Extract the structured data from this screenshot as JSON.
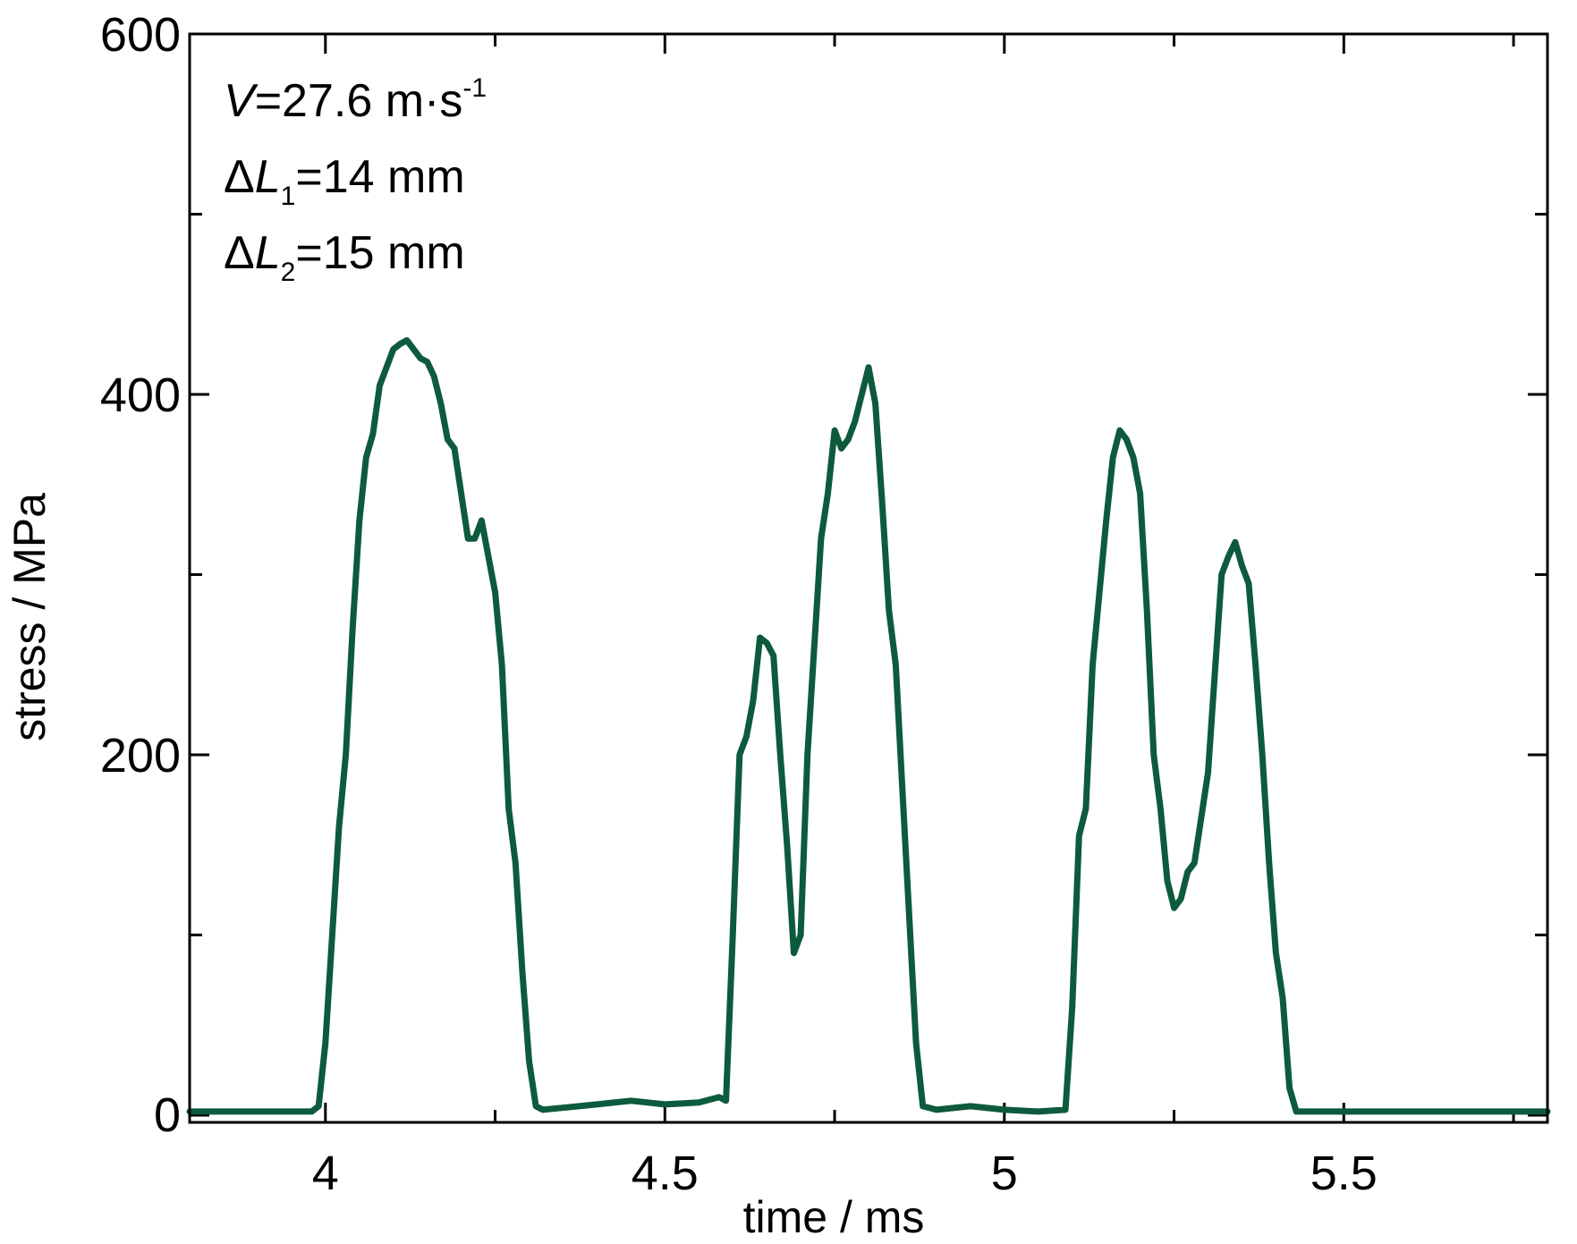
{
  "chart_data": {
    "type": "line",
    "x_label": "time / ms",
    "y_label": "stress / MPa",
    "annotations": [
      [
        "V",
        "=27.6 m·s",
        "-1"
      ],
      [
        "Δ",
        "L",
        "1",
        "=14 mm"
      ],
      [
        "Δ",
        "L",
        "2",
        "=15 mm"
      ]
    ],
    "xlim": [
      3.8,
      5.8
    ],
    "ylim": [
      -4,
      600
    ],
    "xticks": [
      4.0,
      4.5,
      5.0,
      5.5
    ],
    "xminorticks": [
      4.25,
      4.75,
      5.25,
      5.75
    ],
    "yticks": [
      0,
      200,
      400,
      600
    ],
    "yminorticks": [
      100,
      300,
      500
    ],
    "series": [
      {
        "color": "#0d5a3c",
        "x": [
          3.8,
          3.98,
          3.99,
          4.0,
          4.01,
          4.02,
          4.03,
          4.04,
          4.05,
          4.06,
          4.07,
          4.08,
          4.09,
          4.1,
          4.11,
          4.12,
          4.13,
          4.14,
          4.15,
          4.16,
          4.17,
          4.18,
          4.19,
          4.2,
          4.21,
          4.22,
          4.23,
          4.24,
          4.25,
          4.26,
          4.27,
          4.28,
          4.29,
          4.3,
          4.31,
          4.32,
          4.4,
          4.45,
          4.5,
          4.55,
          4.58,
          4.59,
          4.6,
          4.61,
          4.62,
          4.63,
          4.64,
          4.65,
          4.66,
          4.67,
          4.68,
          4.69,
          4.7,
          4.71,
          4.72,
          4.73,
          4.74,
          4.75,
          4.76,
          4.77,
          4.78,
          4.79,
          4.8,
          4.81,
          4.82,
          4.83,
          4.84,
          4.85,
          4.86,
          4.87,
          4.88,
          4.9,
          4.95,
          5.0,
          5.05,
          5.09,
          5.1,
          5.11,
          5.12,
          5.13,
          5.14,
          5.15,
          5.16,
          5.17,
          5.18,
          5.19,
          5.2,
          5.21,
          5.22,
          5.23,
          5.24,
          5.25,
          5.26,
          5.27,
          5.28,
          5.29,
          5.3,
          5.31,
          5.32,
          5.33,
          5.34,
          5.35,
          5.36,
          5.37,
          5.38,
          5.39,
          5.4,
          5.41,
          5.42,
          5.43,
          5.8
        ],
        "values": [
          2,
          2,
          5,
          40,
          100,
          160,
          200,
          270,
          330,
          365,
          378,
          405,
          415,
          425,
          428,
          430,
          425,
          420,
          418,
          410,
          395,
          375,
          370,
          345,
          320,
          320,
          330,
          310,
          290,
          250,
          170,
          140,
          80,
          30,
          5,
          3,
          6,
          8,
          6,
          7,
          10,
          8,
          100,
          200,
          210,
          230,
          265,
          262,
          255,
          200,
          150,
          90,
          100,
          200,
          260,
          320,
          345,
          380,
          370,
          375,
          385,
          400,
          415,
          395,
          340,
          280,
          250,
          180,
          110,
          40,
          5,
          3,
          5,
          3,
          2,
          3,
          60,
          155,
          170,
          250,
          290,
          330,
          365,
          380,
          375,
          365,
          345,
          280,
          200,
          170,
          130,
          115,
          120,
          135,
          140,
          165,
          190,
          245,
          300,
          310,
          318,
          305,
          295,
          250,
          200,
          140,
          90,
          65,
          15,
          2,
          2
        ]
      }
    ]
  }
}
